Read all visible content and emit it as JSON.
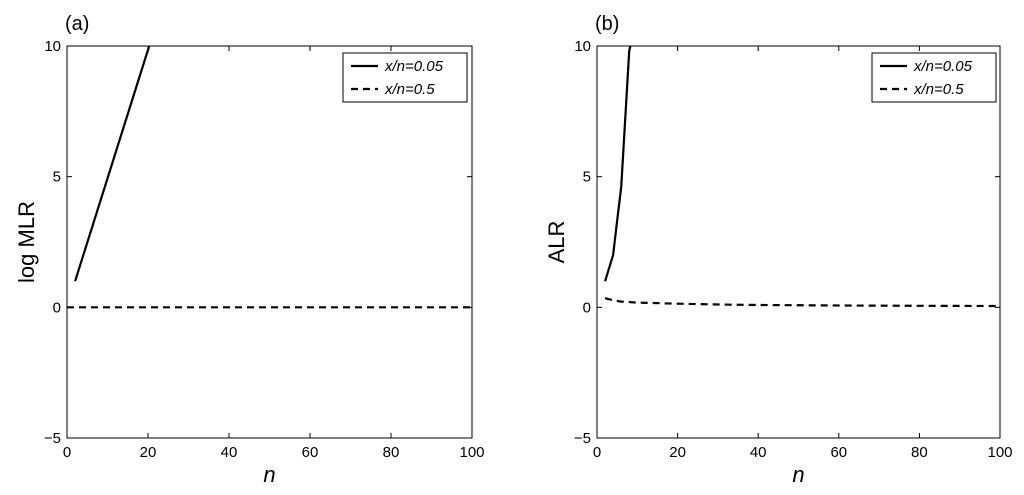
{
  "chart_data": [
    {
      "type": "line",
      "panel_label": "(a)",
      "xlabel": "n",
      "ylabel": "log MLR",
      "xlim": [
        0,
        100
      ],
      "ylim": [
        -5,
        10
      ],
      "xticks": [
        0,
        20,
        40,
        60,
        80,
        100
      ],
      "yticks": [
        -5,
        0,
        5,
        10
      ],
      "legend_position": "top-right",
      "series": [
        {
          "name": "x/n=0.05",
          "style": "solid",
          "x": [
            2,
            20.3
          ],
          "y": [
            1.0,
            10.0
          ]
        },
        {
          "name": "x/n=0.5",
          "style": "dashed",
          "x": [
            0,
            100
          ],
          "y": [
            0,
            0
          ]
        }
      ]
    },
    {
      "type": "line",
      "panel_label": "(b)",
      "xlabel": "n",
      "ylabel": "ALR",
      "xlim": [
        0,
        100
      ],
      "ylim": [
        -5,
        10
      ],
      "xticks": [
        0,
        20,
        40,
        60,
        80,
        100
      ],
      "yticks": [
        -5,
        0,
        5,
        10
      ],
      "legend_position": "top-right",
      "series": [
        {
          "name": "x/n=0.05",
          "style": "solid",
          "x": [
            2,
            3,
            4,
            5,
            6,
            7,
            8,
            8.3
          ],
          "y": [
            1.0,
            1.5,
            2.0,
            3.3,
            4.6,
            7.2,
            9.8,
            10.0
          ]
        },
        {
          "name": "x/n=0.5",
          "style": "dashed",
          "x": [
            2,
            4,
            6,
            10,
            20,
            30,
            40,
            60,
            80,
            100
          ],
          "y": [
            0.35,
            0.27,
            0.22,
            0.18,
            0.14,
            0.11,
            0.09,
            0.07,
            0.06,
            0.05
          ]
        }
      ]
    }
  ]
}
